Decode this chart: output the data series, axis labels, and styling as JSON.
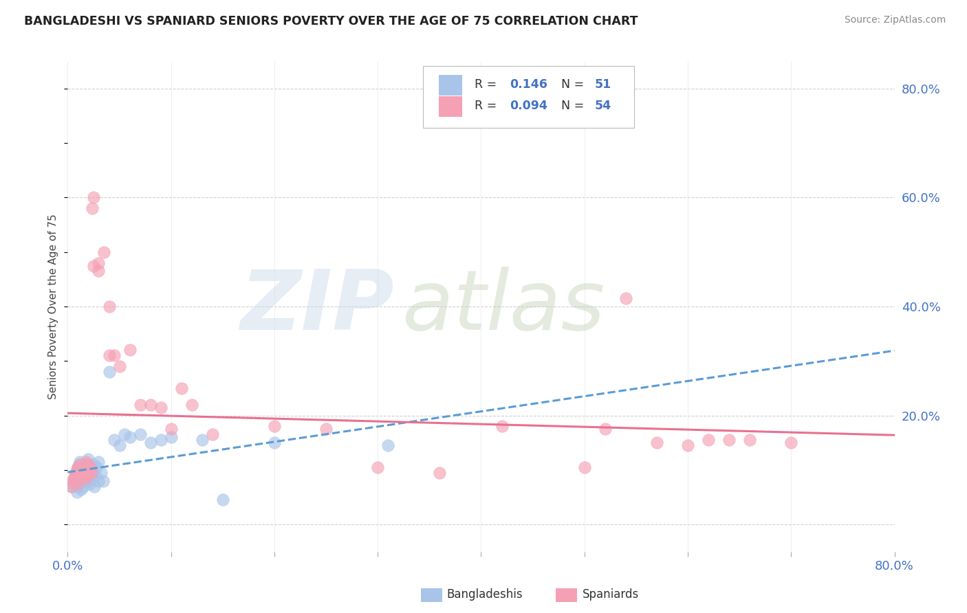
{
  "title": "BANGLADESHI VS SPANIARD SENIORS POVERTY OVER THE AGE OF 75 CORRELATION CHART",
  "source": "Source: ZipAtlas.com",
  "ylabel": "Seniors Poverty Over the Age of 75",
  "xlim": [
    0.0,
    0.8
  ],
  "ylim": [
    -0.05,
    0.85
  ],
  "x_ticks": [
    0.0,
    0.1,
    0.2,
    0.3,
    0.4,
    0.5,
    0.6,
    0.7,
    0.8
  ],
  "x_tick_labels": [
    "0.0%",
    "",
    "",
    "",
    "",
    "",
    "",
    "",
    "80.0%"
  ],
  "y_ticks_right": [
    0.0,
    0.2,
    0.4,
    0.6,
    0.8
  ],
  "y_tick_right_labels": [
    "",
    "20.0%",
    "40.0%",
    "60.0%",
    "80.0%"
  ],
  "r1": "0.146",
  "n1": "51",
  "r2": "0.094",
  "n2": "54",
  "color_bangladeshi": "#a8c4e8",
  "color_spaniard": "#f5a0b5",
  "color_trend_b": "#5b9bd5",
  "color_trend_s": "#e87090",
  "bg_color": "#ffffff",
  "grid_color": "#d0d0d0",
  "title_color": "#222222",
  "tick_label_color": "#4472c4",
  "legend_text_color": "#333333",
  "legend_n_color": "#4472c4",
  "bangladeshi_x": [
    0.004,
    0.005,
    0.006,
    0.007,
    0.008,
    0.008,
    0.009,
    0.009,
    0.01,
    0.01,
    0.011,
    0.011,
    0.012,
    0.012,
    0.013,
    0.013,
    0.014,
    0.015,
    0.015,
    0.016,
    0.017,
    0.018,
    0.018,
    0.019,
    0.02,
    0.02,
    0.021,
    0.022,
    0.023,
    0.024,
    0.025,
    0.026,
    0.027,
    0.028,
    0.03,
    0.03,
    0.032,
    0.034,
    0.04,
    0.045,
    0.05,
    0.055,
    0.06,
    0.07,
    0.08,
    0.09,
    0.1,
    0.13,
    0.15,
    0.2,
    0.31
  ],
  "bangladeshi_y": [
    0.07,
    0.075,
    0.08,
    0.085,
    0.09,
    0.095,
    0.06,
    0.1,
    0.07,
    0.105,
    0.08,
    0.11,
    0.085,
    0.115,
    0.09,
    0.065,
    0.095,
    0.1,
    0.07,
    0.105,
    0.085,
    0.095,
    0.11,
    0.08,
    0.09,
    0.12,
    0.075,
    0.1,
    0.085,
    0.095,
    0.11,
    0.07,
    0.09,
    0.105,
    0.08,
    0.115,
    0.095,
    0.08,
    0.28,
    0.155,
    0.145,
    0.165,
    0.16,
    0.165,
    0.15,
    0.155,
    0.16,
    0.155,
    0.045,
    0.15,
    0.145
  ],
  "spaniard_x": [
    0.004,
    0.005,
    0.006,
    0.007,
    0.008,
    0.009,
    0.01,
    0.01,
    0.011,
    0.012,
    0.013,
    0.014,
    0.015,
    0.016,
    0.017,
    0.018,
    0.019,
    0.02,
    0.02,
    0.021,
    0.022,
    0.023,
    0.024,
    0.025,
    0.025,
    0.03,
    0.03,
    0.035,
    0.04,
    0.04,
    0.045,
    0.05,
    0.06,
    0.07,
    0.08,
    0.09,
    0.1,
    0.11,
    0.12,
    0.14,
    0.2,
    0.25,
    0.3,
    0.36,
    0.42,
    0.5,
    0.52,
    0.54,
    0.57,
    0.6,
    0.62,
    0.64,
    0.66,
    0.7
  ],
  "spaniard_y": [
    0.07,
    0.08,
    0.085,
    0.09,
    0.095,
    0.1,
    0.075,
    0.105,
    0.085,
    0.11,
    0.09,
    0.095,
    0.1,
    0.105,
    0.085,
    0.115,
    0.09,
    0.095,
    0.11,
    0.1,
    0.105,
    0.095,
    0.58,
    0.6,
    0.475,
    0.465,
    0.48,
    0.5,
    0.31,
    0.4,
    0.31,
    0.29,
    0.32,
    0.22,
    0.22,
    0.215,
    0.175,
    0.25,
    0.22,
    0.165,
    0.18,
    0.175,
    0.105,
    0.095,
    0.18,
    0.105,
    0.175,
    0.415,
    0.15,
    0.145,
    0.155,
    0.155,
    0.155,
    0.15
  ]
}
